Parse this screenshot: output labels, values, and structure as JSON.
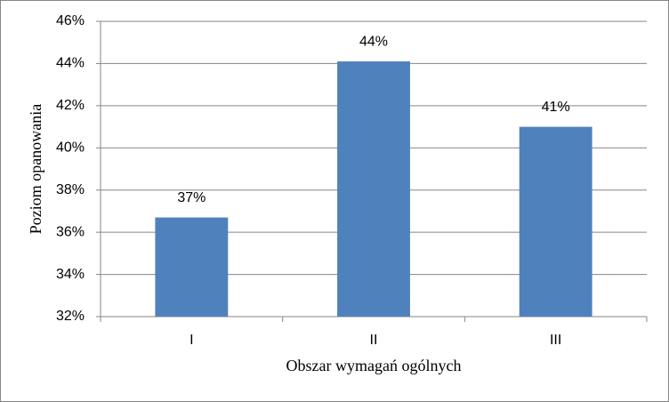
{
  "chart_data": {
    "type": "bar",
    "x_label": "Obszar wymagań ogólnych",
    "y_label": "Poziom opanowania",
    "categories": [
      "I",
      "II",
      "III"
    ],
    "values": [
      36.7,
      44.1,
      41.0
    ],
    "value_labels": [
      "37%",
      "44%",
      "41%"
    ],
    "color": "#4f81bd",
    "ylim": [
      32,
      46
    ],
    "yticks": [
      {
        "value": 32,
        "label": "32%"
      },
      {
        "value": 34,
        "label": "34%"
      },
      {
        "value": 36,
        "label": "36%"
      },
      {
        "value": 38,
        "label": "38%"
      },
      {
        "value": 40,
        "label": "40%"
      },
      {
        "value": 42,
        "label": "42%"
      },
      {
        "value": 44,
        "label": "44%"
      },
      {
        "value": 46,
        "label": "46%"
      }
    ],
    "grid": true
  }
}
